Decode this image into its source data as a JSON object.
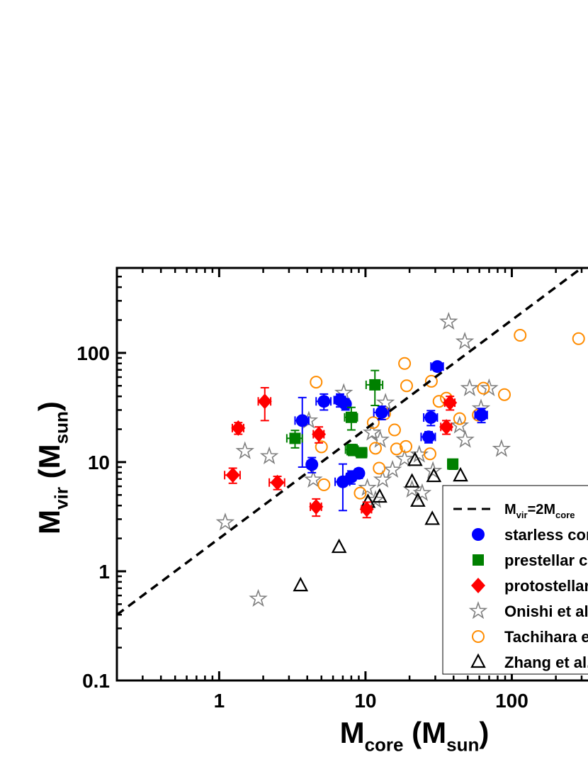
{
  "chart_data": {
    "type": "scatter",
    "log_x": true,
    "log_y": true,
    "xlim": [
      0.2,
      1000
    ],
    "ylim": [
      0.1,
      600
    ],
    "xticks": [
      1,
      10,
      100
    ],
    "yticks": [
      0.1,
      1,
      10,
      100
    ],
    "x_minor_ticks": [
      0.3,
      0.4,
      0.5,
      0.6,
      0.7,
      0.8,
      0.9,
      2,
      3,
      4,
      5,
      6,
      7,
      8,
      9,
      20,
      30,
      40,
      50,
      60,
      70,
      80,
      90,
      200,
      300
    ],
    "y_minor_ticks": [
      0.2,
      0.3,
      0.4,
      0.5,
      0.6,
      0.7,
      0.8,
      0.9,
      2,
      3,
      4,
      5,
      6,
      7,
      8,
      9,
      20,
      30,
      40,
      50,
      60,
      70,
      80,
      90,
      200,
      300,
      400,
      500
    ],
    "xlabel": [
      "M",
      "core",
      "  (M",
      "sun",
      ")"
    ],
    "ylabel": [
      "M",
      "vir",
      " (M",
      "sun",
      ")"
    ],
    "series": [
      {
        "name": [
          "M",
          "vir",
          "=2M",
          "core"
        ],
        "kind": "line",
        "color": "#000000",
        "x": [
          0.2,
          300
        ],
        "values": [
          0.4,
          600
        ]
      },
      {
        "name": "starless cores",
        "kind": "circle",
        "color": "#0000ff",
        "x": [
          3.7,
          4.3,
          5.2,
          6.7,
          7.3,
          7.0,
          8.0,
          9.0,
          12.9,
          28,
          27,
          31,
          62
        ],
        "values": [
          24,
          9.5,
          36,
          37,
          34,
          6.6,
          7.3,
          7.9,
          28.5,
          25.6,
          17,
          75,
          27
        ],
        "xerr": [
          0.4,
          0.3,
          0.6,
          0.6,
          0.5,
          0.8,
          0.6,
          0.6,
          1.5,
          3,
          3,
          3,
          6
        ],
        "yerr": [
          15,
          1.5,
          6,
          5,
          4,
          3,
          1,
          0.8,
          4,
          4,
          2,
          6,
          4
        ]
      },
      {
        "name": "prestellar cores",
        "kind": "square",
        "color": "#008000",
        "x": [
          3.3,
          8.0,
          8.1,
          9.4,
          11.6,
          39.5
        ],
        "values": [
          16.5,
          25.7,
          13,
          12.2,
          51,
          9.6
        ],
        "xerr": [
          0.4,
          0.8,
          0.8,
          0.8,
          1.5,
          3
        ],
        "yerr": [
          3,
          6,
          1.5,
          1.2,
          18,
          1
        ]
      },
      {
        "name": "protostellar cores",
        "kind": "diamond",
        "color": "#ff0000",
        "x": [
          1.24,
          1.35,
          2.05,
          2.5,
          4.6,
          4.8,
          10.2,
          35.7,
          37.8
        ],
        "values": [
          7.6,
          20.5,
          36,
          6.5,
          3.9,
          18,
          3.7,
          21,
          35
        ],
        "xerr": [
          0.15,
          0.12,
          0.2,
          0.3,
          0.4,
          0.4,
          0.8,
          3,
          3
        ],
        "yerr": [
          1.2,
          2.5,
          12,
          0.9,
          0.7,
          3,
          0.6,
          3,
          5
        ]
      },
      {
        "name": "Onishi et al.",
        "kind": "star",
        "color": "#808080",
        "x": [
          1.1,
          1.5,
          2.2,
          1.85,
          4.1,
          4.4,
          7.1,
          11.1,
          13.7,
          12.6,
          15.3,
          18.5,
          23.3,
          10.3,
          13.1,
          20.8,
          37,
          47.7,
          51.5,
          69.9,
          61.6,
          44,
          48,
          85,
          28.9,
          24.4,
          11.7
        ],
        "values": [
          2.8,
          12.6,
          11.3,
          0.56,
          24,
          6.9,
          43,
          18.6,
          35,
          16,
          8.5,
          10.7,
          11.7,
          5.8,
          6.9,
          5.6,
          193,
          127,
          47.5,
          47.5,
          31,
          21.6,
          16,
          13.2,
          8.3,
          5.2,
          4.5
        ]
      },
      {
        "name": "Tachihara et al.",
        "kind": "open-circle",
        "color": "#ff8c00",
        "x": [
          4.6,
          5,
          5.2,
          18.5,
          19.1,
          11.3,
          11.7,
          13.5,
          15.8,
          16.3,
          18.9,
          28.2,
          31.8,
          35.7,
          27.6,
          44,
          59,
          64,
          89,
          114,
          286,
          12.4,
          9.2
        ],
        "values": [
          54,
          13.8,
          6.2,
          80,
          50,
          23,
          13.4,
          27.7,
          19.7,
          13.2,
          13.9,
          55,
          36,
          38.5,
          11.9,
          25,
          27,
          47.5,
          41.5,
          145,
          135,
          8.8,
          5.2
        ]
      },
      {
        "name": "Zhang et al.",
        "kind": "triangle",
        "color": "#000000",
        "x": [
          3.6,
          6.6,
          21.8,
          20.8,
          22.8,
          28.6,
          29.3,
          44.6,
          12.5,
          10.4
        ],
        "values": [
          0.74,
          1.66,
          10.4,
          6.6,
          4.4,
          3.0,
          7.4,
          7.5,
          4.8,
          4.3
        ]
      }
    ]
  }
}
